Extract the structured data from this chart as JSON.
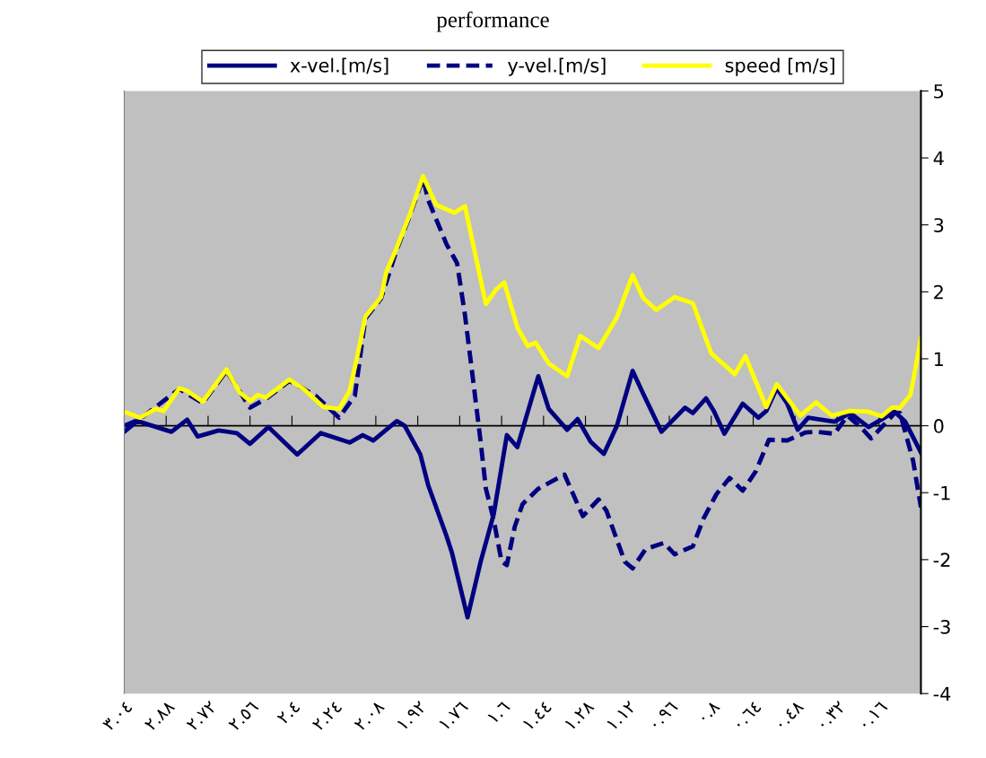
{
  "chart_data": {
    "type": "line",
    "title": "performance",
    "xlim": [
      3.04,
      0.0
    ],
    "xticks": [
      {
        "value": 3.04,
        "label": "٣.٠٤"
      },
      {
        "value": 2.88,
        "label": "٢.٨٨"
      },
      {
        "value": 2.72,
        "label": "٢.٧٢"
      },
      {
        "value": 2.56,
        "label": "٢.٥٦"
      },
      {
        "value": 2.4,
        "label": "٢.٤"
      },
      {
        "value": 2.24,
        "label": "٢.٢٤"
      },
      {
        "value": 2.08,
        "label": "٢.٠٨"
      },
      {
        "value": 1.92,
        "label": "١.٩٢"
      },
      {
        "value": 1.76,
        "label": "١.٧٦"
      },
      {
        "value": 1.6,
        "label": "١.٦"
      },
      {
        "value": 1.44,
        "label": "١.٤٤"
      },
      {
        "value": 1.28,
        "label": "١.٢٨"
      },
      {
        "value": 1.12,
        "label": "١.١٢"
      },
      {
        "value": 0.96,
        "label": "٠.٩٦"
      },
      {
        "value": 0.8,
        "label": "٠.٨"
      },
      {
        "value": 0.64,
        "label": "٠.٦٤"
      },
      {
        "value": 0.48,
        "label": "٠.٤٨"
      },
      {
        "value": 0.32,
        "label": "٠.٣٢"
      },
      {
        "value": 0.16,
        "label": "٠.١٦"
      }
    ],
    "ylim": [
      -4,
      5
    ],
    "yticks": [
      -4,
      -3,
      -2,
      -1,
      0,
      1,
      2,
      3,
      4,
      5
    ],
    "grid": false,
    "ref_lines": [
      {
        "axis": "y",
        "value": 0,
        "color": "#000000",
        "line_style": "solid"
      }
    ],
    "legend": "top",
    "marker": "none",
    "series": [
      {
        "name": "x-vel.[m/s]",
        "color": "#000080",
        "line_style": "solid",
        "x": [
          3.04,
          2.99,
          2.86,
          2.8,
          2.76,
          2.68,
          2.61,
          2.56,
          2.49,
          2.38,
          2.29,
          2.18,
          2.13,
          2.09,
          2.0,
          1.97,
          1.91,
          1.88,
          1.81,
          1.79,
          1.73,
          1.68,
          1.63,
          1.58,
          1.54,
          1.46,
          1.42,
          1.35,
          1.31,
          1.26,
          1.21,
          1.16,
          1.1,
          1.06,
          0.99,
          0.9,
          0.87,
          0.82,
          0.79,
          0.75,
          0.68,
          0.62,
          0.59,
          0.55,
          0.51,
          0.47,
          0.43,
          0.33,
          0.27,
          0.2,
          0.1,
          0.06,
          0.0
        ],
        "values": [
          -0.09,
          0.07,
          -0.09,
          0.09,
          -0.16,
          -0.07,
          -0.11,
          -0.27,
          -0.02,
          -0.43,
          -0.11,
          -0.25,
          -0.14,
          -0.22,
          0.07,
          0.0,
          -0.43,
          -0.89,
          -1.65,
          -1.89,
          -2.86,
          -2.03,
          -1.32,
          -0.14,
          -0.32,
          0.74,
          0.25,
          -0.06,
          0.1,
          -0.24,
          -0.42,
          0.0,
          0.82,
          0.48,
          -0.09,
          0.27,
          0.19,
          0.41,
          0.22,
          -0.12,
          0.33,
          0.12,
          0.22,
          0.56,
          0.33,
          -0.06,
          0.12,
          0.06,
          0.19,
          -0.02,
          0.21,
          0.06,
          -0.4
        ]
      },
      {
        "name": "y-vel.[m/s]",
        "color": "#000080",
        "line_style": "dashed",
        "x": [
          3.04,
          2.98,
          2.83,
          2.74,
          2.65,
          2.56,
          2.5,
          2.41,
          2.31,
          2.22,
          2.16,
          2.12,
          2.06,
          2.0,
          1.95,
          1.9,
          1.88,
          1.81,
          1.77,
          1.74,
          1.71,
          1.68,
          1.66,
          1.63,
          1.6,
          1.58,
          1.55,
          1.52,
          1.46,
          1.36,
          1.29,
          1.23,
          1.2,
          1.13,
          1.1,
          1.05,
          0.98,
          0.94,
          0.87,
          0.83,
          0.78,
          0.73,
          0.68,
          0.63,
          0.58,
          0.51,
          0.44,
          0.4,
          0.33,
          0.28,
          0.23,
          0.19,
          0.1,
          0.08,
          0.03,
          0.0
        ],
        "values": [
          0.0,
          0.1,
          0.55,
          0.34,
          0.82,
          0.27,
          0.4,
          0.67,
          0.45,
          0.12,
          0.45,
          1.6,
          1.9,
          2.63,
          3.14,
          3.7,
          3.37,
          2.71,
          2.43,
          1.66,
          0.72,
          -0.24,
          -0.94,
          -1.41,
          -2.03,
          -2.08,
          -1.51,
          -1.17,
          -0.94,
          -0.73,
          -1.35,
          -1.1,
          -1.27,
          -2.03,
          -2.13,
          -1.84,
          -1.75,
          -1.92,
          -1.8,
          -1.39,
          -1.02,
          -0.78,
          -0.97,
          -0.68,
          -0.21,
          -0.22,
          -0.1,
          -0.09,
          -0.12,
          0.15,
          -0.02,
          -0.19,
          0.19,
          0.19,
          -0.52,
          -1.22
        ]
      },
      {
        "name": "speed [m/s]",
        "color": "#ffff00",
        "line_style": "solid",
        "x": [
          3.04,
          2.98,
          2.92,
          2.89,
          2.83,
          2.8,
          2.74,
          2.65,
          2.6,
          2.56,
          2.53,
          2.5,
          2.41,
          2.35,
          2.28,
          2.22,
          2.18,
          2.15,
          2.12,
          2.06,
          2.04,
          2.0,
          1.95,
          1.9,
          1.85,
          1.78,
          1.74,
          1.66,
          1.62,
          1.59,
          1.54,
          1.5,
          1.47,
          1.42,
          1.35,
          1.3,
          1.23,
          1.16,
          1.1,
          1.06,
          1.01,
          0.98,
          0.94,
          0.87,
          0.8,
          0.71,
          0.67,
          0.59,
          0.55,
          0.46,
          0.4,
          0.34,
          0.27,
          0.2,
          0.15,
          0.11,
          0.08,
          0.04,
          0.0
        ],
        "values": [
          0.21,
          0.12,
          0.25,
          0.22,
          0.56,
          0.52,
          0.36,
          0.84,
          0.5,
          0.37,
          0.46,
          0.42,
          0.69,
          0.53,
          0.28,
          0.25,
          0.52,
          1.05,
          1.63,
          1.92,
          2.29,
          2.66,
          3.16,
          3.73,
          3.3,
          3.18,
          3.28,
          1.82,
          2.04,
          2.14,
          1.47,
          1.19,
          1.24,
          0.93,
          0.74,
          1.34,
          1.16,
          1.62,
          2.25,
          1.91,
          1.73,
          1.81,
          1.92,
          1.83,
          1.08,
          0.77,
          1.04,
          0.28,
          0.62,
          0.15,
          0.35,
          0.15,
          0.22,
          0.21,
          0.14,
          0.27,
          0.27,
          0.46,
          1.3
        ]
      }
    ]
  }
}
